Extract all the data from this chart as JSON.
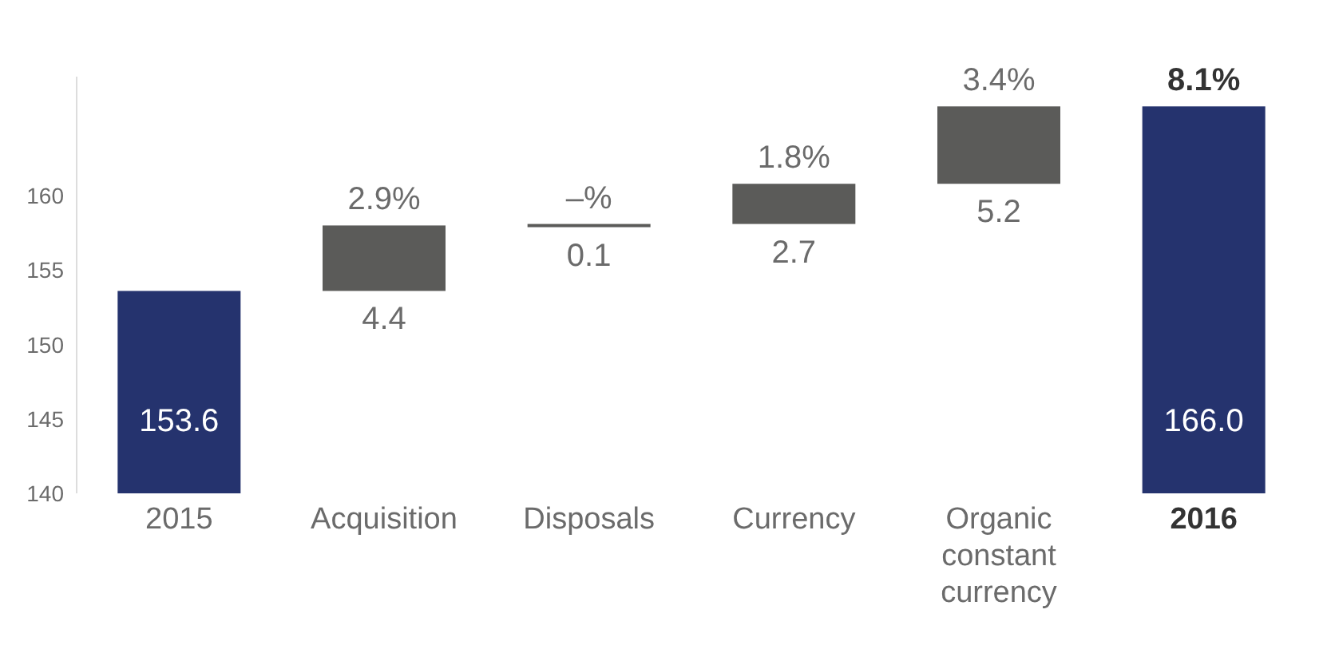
{
  "chart_data": {
    "type": "bar",
    "categories": [
      "2015",
      "Acquisition",
      "Disposals",
      "Currency",
      "Organic constant currency",
      "2016"
    ],
    "values": [
      153.6,
      4.4,
      0.1,
      2.7,
      5.2,
      166.0
    ],
    "base": [
      null,
      153.6,
      158.0,
      158.1,
      160.8,
      null
    ],
    "colors": [
      "#25336e",
      "#5b5b59",
      "#5b5b59",
      "#5b5b59",
      "#5b5b59",
      "#25336e"
    ],
    "value_labels": [
      "153.6",
      "4.4",
      "0.1",
      "2.7",
      "5.2",
      "166.0"
    ],
    "annotations": [
      "2.9%",
      "–%",
      "1.8%",
      "3.4%",
      "8.1%"
    ],
    "ylim": [
      140,
      168
    ],
    "yticks": [
      140,
      145,
      150,
      155,
      160
    ]
  }
}
